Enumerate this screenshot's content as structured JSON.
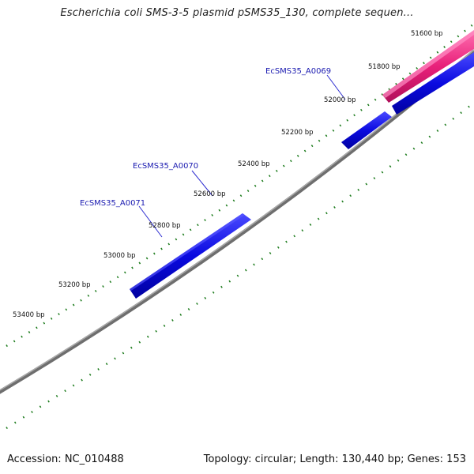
{
  "title": "Escherichia coli SMS-3-5 plasmid pSMS35_130, complete sequen...",
  "footer": {
    "accession": "Accession: NC_010488",
    "summary": "Topology: circular; Length: 130,440 bp; Genes: 153"
  },
  "ticks": [
    {
      "label": "51600 bp"
    },
    {
      "label": "51800 bp"
    },
    {
      "label": "52000 bp"
    },
    {
      "label": "52200 bp"
    },
    {
      "label": "52400 bp"
    },
    {
      "label": "52600 bp"
    },
    {
      "label": "52800 bp"
    },
    {
      "label": "53000 bp"
    },
    {
      "label": "53200 bp"
    },
    {
      "label": "53400 bp"
    }
  ],
  "genes": [
    {
      "label": "EcSMS35_A0069"
    },
    {
      "label": "EcSMS35_A0070"
    },
    {
      "label": "EcSMS35_A0071"
    }
  ],
  "colors": {
    "backbone": "#808080",
    "gene_forward": "#1010e0",
    "feature_pink": "#e8207a",
    "tick_marks": "#1a7a1a",
    "gene_label": "#1a1ab0"
  }
}
